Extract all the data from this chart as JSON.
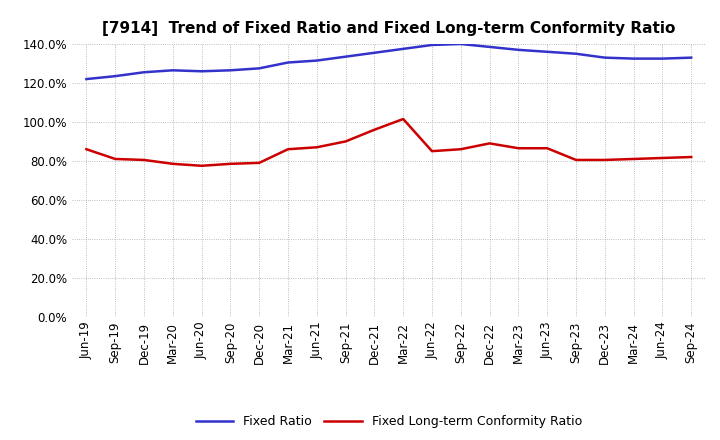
{
  "title": "[7914]  Trend of Fixed Ratio and Fixed Long-term Conformity Ratio",
  "labels": [
    "Jun-19",
    "Sep-19",
    "Dec-19",
    "Mar-20",
    "Jun-20",
    "Sep-20",
    "Dec-20",
    "Mar-21",
    "Jun-21",
    "Sep-21",
    "Dec-21",
    "Mar-22",
    "Jun-22",
    "Sep-22",
    "Dec-22",
    "Mar-23",
    "Jun-23",
    "Sep-23",
    "Dec-23",
    "Mar-24",
    "Jun-24",
    "Sep-24"
  ],
  "fixed_ratio": [
    122.0,
    123.5,
    125.5,
    126.5,
    126.0,
    126.5,
    127.5,
    130.5,
    131.5,
    133.5,
    135.5,
    137.5,
    139.5,
    140.0,
    138.5,
    137.0,
    136.0,
    135.0,
    133.0,
    132.5,
    132.5,
    133.0
  ],
  "fixed_lt_ratio": [
    86.0,
    81.0,
    80.5,
    78.5,
    77.5,
    78.5,
    79.0,
    86.0,
    87.0,
    90.0,
    96.0,
    101.5,
    85.0,
    86.0,
    89.0,
    86.5,
    86.5,
    80.5,
    80.5,
    81.0,
    81.5,
    82.0
  ],
  "fixed_ratio_color": "#3333cc",
  "fixed_lt_ratio_color": "#cc0000",
  "ylim": [
    0,
    140
  ],
  "yticks": [
    0,
    20,
    40,
    60,
    80,
    100,
    120,
    140
  ],
  "bg_color": "#ffffff",
  "plot_bg_color": "#ffffff",
  "grid_color": "#aaaaaa",
  "legend_fixed": "Fixed Ratio",
  "legend_lt": "Fixed Long-term Conformity Ratio",
  "title_fontsize": 11,
  "tick_fontsize": 8.5,
  "legend_fontsize": 9
}
